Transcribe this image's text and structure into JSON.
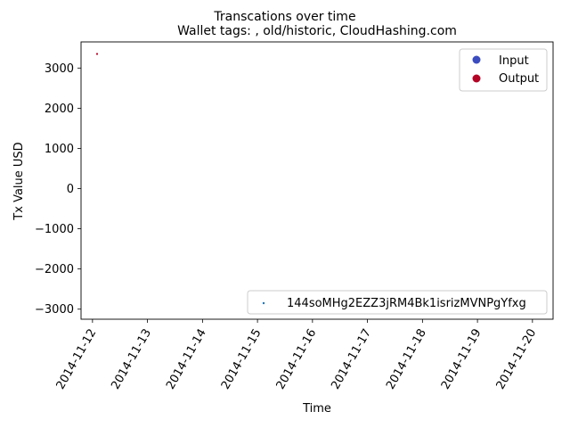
{
  "chart_data": {
    "type": "scatter",
    "suptitle": "Transcations over time",
    "title": "Wallet tags: , old/historic, CloudHashing.com",
    "xlabel": "Time",
    "ylabel": "Tx Value USD",
    "x_ticks": [
      "2014-11-12",
      "2014-11-13",
      "2014-11-14",
      "2014-11-15",
      "2014-11-16",
      "2014-11-17",
      "2014-11-18",
      "2014-11-19",
      "2014-11-20"
    ],
    "xlim": [
      "2014-11-11 19:00",
      "2014-11-20 09:00"
    ],
    "y_ticks": [
      3000,
      2000,
      1000,
      0,
      -1000,
      -2000,
      -3000
    ],
    "ylim": [
      -3250,
      3650
    ],
    "grid": false,
    "points": [
      {
        "x": "2014-11-12 02:00",
        "y": 3350,
        "kind": "Output"
      }
    ],
    "legend_kinds": [
      {
        "label": "Input",
        "color": "#3b4cc0"
      },
      {
        "label": "Output",
        "color": "#b40426"
      }
    ],
    "legend_series": [
      {
        "label": "144soMHg2EZZ3jRM4Bk1isrizMVNPgYfxg",
        "color": "#1f77b4"
      }
    ],
    "legend_kinds_placement": "top-right",
    "legend_series_placement": "bottom-right"
  }
}
